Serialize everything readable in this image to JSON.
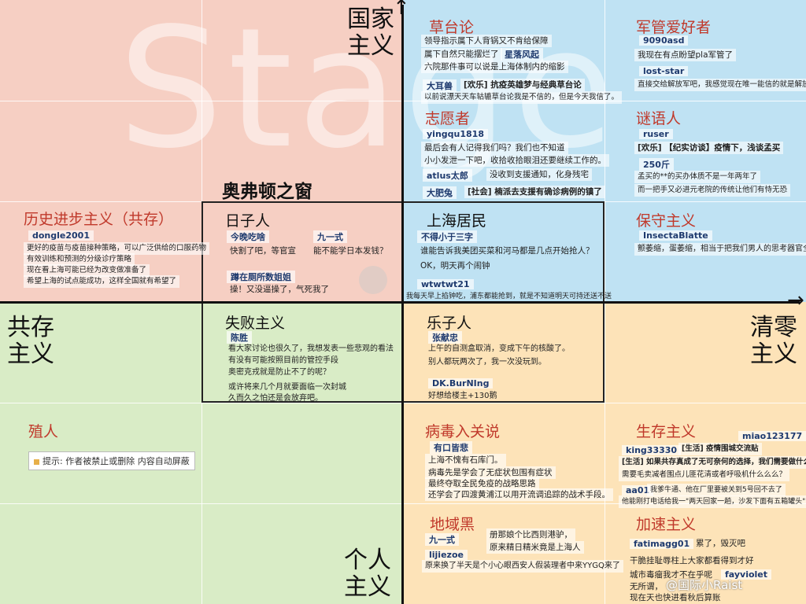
{
  "watermark": "Stage",
  "axes": {
    "top": "国家主义",
    "bottom": "个人主义",
    "left": "共存主义",
    "right": "清零主义",
    "center_box_title": "奥弗顿之窗"
  },
  "sections": {
    "grass": {
      "title": "草台论",
      "lines": [
        "领导指示属下人背锅又不肯给保障",
        "属下自然只能摆烂了",
        "星落风起",
        "六院那件事可以说是上海体制内的缩影"
      ],
      "user": "大耳兽",
      "post_title": "[欢乐] 抗疫英雄梦与经典草台论",
      "post_text": "以前说漂天天车轱辘草台论我是不信的，但是今天我信了。"
    },
    "military": {
      "title": "军管爱好者",
      "user1": "9090asd",
      "text1": "我现在有点盼望pla军管了",
      "user2": "lost-star",
      "text2": "直接交给解放军吧，我感觉现在唯一能信的就是解放军了"
    },
    "volunteer": {
      "title": "志愿者",
      "user1": "yingqu1818",
      "text1a": "最后会有人记得我们吗？我们也不知道",
      "text1b": "小小发泄一下吧，收拾收拾眼泪还要继续工作的。",
      "user2": "atlus太郎",
      "text2": "没收到支援通知，化身残宅",
      "user3": "大肥兔",
      "text3": "[社会] 楠派去支援有确诊病例的镇了"
    },
    "riddle": {
      "title": "谜语人",
      "user1": "ruser",
      "text1": "[欢乐] 【纪实访谈】疫情下，浅谈孟买",
      "num": "250斤",
      "text2": "孟买的**的买办体质不是一年两年了",
      "text3": "而一把手又必进元老院的传统让他们有恃无恐"
    },
    "history": {
      "title": "历史进步主义（共存）",
      "user": "dongle2001",
      "lines": [
        "更好的疫苗与疫苗接种策略，可以广泛供给的口服药物",
        "有效训练和预测的分级诊疗策略",
        "现在看上海可能已经为改变做准备了",
        "希望上海的试点能成功，这样全国就有希望了"
      ]
    },
    "daily": {
      "title": "日子人",
      "user1": "今晚吃啥",
      "text1": "快割了吧，等官宣",
      "user2": "九一式",
      "text2": "能不能学日本发钱？",
      "user3": "蹲在厕所数姐姐",
      "text3": "操！又没逼操了，气死我了"
    },
    "shanghai": {
      "title": "上海居民",
      "user1": "不得小于三字",
      "text1": "谁能告诉我美团买菜和河马都是几点开始抢人？",
      "text1b": "OK，明天再个闹钟",
      "user2": "wtwtwt21",
      "text2": "我每天早上掐钟吃，浦东都能抢到，就是不知道明天可持还送不送"
    },
    "conservative": {
      "title": "保守主义",
      "user": "InsectaBlatte",
      "text": "颤萎缩，蛋萎缩，相当于把我们男人的思考器官全废了"
    },
    "failure": {
      "title": "失败主义",
      "user": "陈胜",
      "lines": [
        "看大家讨论也很久了，我想发表一些悲观的看法",
        "有没有可能按照目前的管控手段",
        "奥密克戎就是防止不了的呢？",
        "或许将来几个月就要面临一次封城",
        "久而久之怕还是会放弃吧。"
      ]
    },
    "fun": {
      "title": "乐子人",
      "user1": "张献忠",
      "text1a": "上午的自测盒取消，变成下午的核酸了。",
      "text1b": "别人都玩两次了，我一次没玩到。",
      "user2": "DK.BurNIng",
      "text2": "好想给楼主+130鹅"
    },
    "colonial": {
      "title": "殖人",
      "tip": "提示: 作者被禁止或删除 内容自动屏蔽"
    },
    "virus": {
      "title": "病毒入关说",
      "user": "有口皆悲",
      "lines": [
        "上海不愧有石库门。",
        "病毒先是学会了无症状包围有症状",
        "最终夺取全民免疫的战略思路",
        "还学会了四渡黄浦江以用开流调追踪的战术手段。"
      ]
    },
    "survival": {
      "title": "生存主义",
      "user1": "miao123177",
      "user2": "king33330",
      "tag": "[生活] 疫情围城交流贴",
      "post": "[生活] 如果共存真成了无可奈何的选择，我们需要做什么准备？",
      "text1": "需要毛卖减者围点儿匪花清或者呼吸机什么么么？",
      "user3": "aa01",
      "text2": "我爹牛通、他在厂里要被关到5号回不去了",
      "text3": "他能刚打电话给我一\"两天回家一趟，沙发下面有五箱罐头\""
    },
    "region": {
      "title": "地域黑",
      "user1": "九一式",
      "text1a": "册那娘个比西则港驴，",
      "text1b": "原来精日精米竟是上海人",
      "user2": "lijiezoe",
      "text2": "原来换了半天是个小心眼西安人假装理者中来YYGQ来了"
    },
    "accel": {
      "title": "加速主义",
      "user1": "fatimagg01",
      "text1": "累了，毁灭吧",
      "text2": "干脆挂耻辱柱上大家都看得到才好",
      "text3": "城市毒瘤我才不在乎呢",
      "user2": "fayviolet",
      "text4": "无所谓，",
      "text5": "现在天也快进看秋后算账"
    }
  },
  "weibo_mark": "@国际小Raist"
}
